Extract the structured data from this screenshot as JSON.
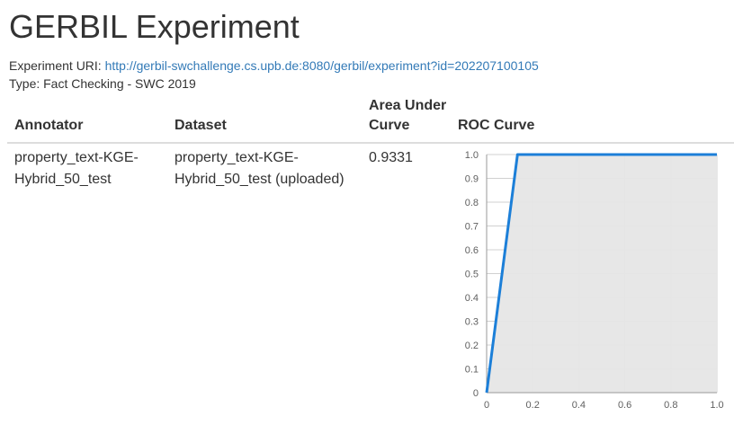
{
  "header": {
    "title": "GERBIL Experiment"
  },
  "experiment": {
    "uri_label": "Experiment URI:",
    "uri": "http://gerbil-swchallenge.cs.upb.de:8080/gerbil/experiment?id=202207100105",
    "type_line": "Type: Fact Checking - SWC 2019"
  },
  "table": {
    "headers": {
      "annotator": "Annotator",
      "dataset": "Dataset",
      "auc_line1": "Area Under",
      "auc_line2": "Curve",
      "roc": "ROC Curve"
    },
    "rows": [
      {
        "annotator_line1": "property_text-KGE-",
        "annotator_line2": "Hybrid_50_test",
        "dataset_line1": "property_text-KGE-",
        "dataset_line2": "Hybrid_50_test (uploaded)",
        "auc": "0.9331"
      }
    ]
  },
  "chart_data": {
    "type": "area",
    "title": "",
    "xlabel": "",
    "ylabel": "",
    "xlim": [
      0,
      1
    ],
    "ylim": [
      0,
      1
    ],
    "xticks": [
      "0",
      "0.2",
      "0.4",
      "0.6",
      "0.8",
      "1.0"
    ],
    "yticks": [
      "0",
      "0.1",
      "0.2",
      "0.3",
      "0.4",
      "0.5",
      "0.6",
      "0.7",
      "0.8",
      "0.9",
      "1.0"
    ],
    "grid": true,
    "series": [
      {
        "x": [
          0,
          0.134,
          1.0
        ],
        "y": [
          0,
          1.0,
          1.0
        ],
        "color": "#1c7fd8",
        "fill": "#e6e6e6"
      }
    ]
  }
}
